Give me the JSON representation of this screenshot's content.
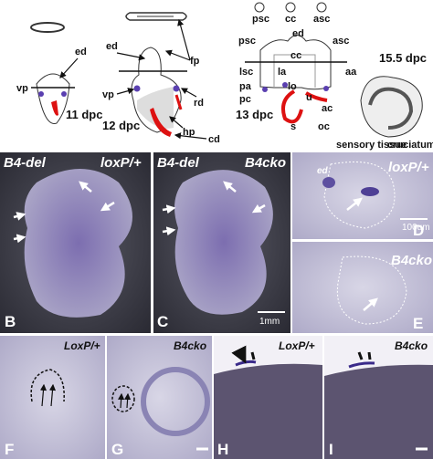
{
  "schematics": [
    {
      "labels": [
        "ed",
        "vp"
      ],
      "stage": "11 dpc"
    },
    {
      "labels": [
        "fp",
        "ed",
        "vp",
        "rd",
        "hp",
        "cd"
      ],
      "stage": "12 dpc"
    },
    {
      "labels": [
        "psc",
        "cc",
        "asc",
        "ed",
        "psc",
        "asc",
        "cc",
        "lsc",
        "la",
        "aa",
        "pa",
        "lo",
        "pc",
        "u",
        "ac",
        "s",
        "oc"
      ],
      "stage": "13 dpc"
    },
    {
      "labels": [
        "sensory tissue",
        "cruciatum"
      ],
      "stage": "15.5 dpc"
    }
  ],
  "panels": [
    {
      "letter": "B",
      "labels": [
        "B4-del",
        "loxP/+"
      ]
    },
    {
      "letter": "C",
      "labels": [
        "B4-del",
        "B4cko"
      ],
      "scale_bar": "1mm"
    },
    {
      "letter": "D",
      "labels": [
        "ed",
        "loxP/+"
      ],
      "scale_bar": "100um"
    },
    {
      "letter": "E",
      "labels": [
        "B4cko"
      ]
    },
    {
      "letter": "F",
      "labels": [
        "LoxP/+"
      ]
    },
    {
      "letter": "G",
      "labels": [
        "B4cko"
      ]
    },
    {
      "letter": "H",
      "labels": [
        "LoxP/+"
      ]
    },
    {
      "letter": "I",
      "labels": [
        "B4cko"
      ]
    }
  ]
}
